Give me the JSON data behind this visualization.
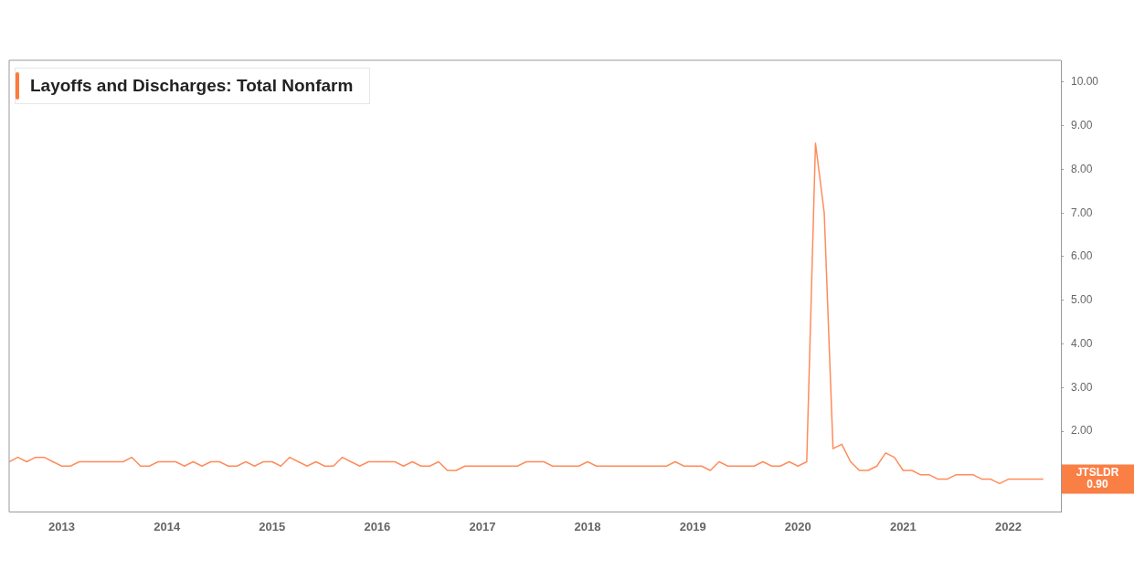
{
  "chart_data": {
    "type": "line",
    "title": "Layoffs and Discharges: Total Nonfarm",
    "x": [
      "2012-07",
      "2012-08",
      "2012-09",
      "2012-10",
      "2012-11",
      "2012-12",
      "2013-01",
      "2013-02",
      "2013-03",
      "2013-04",
      "2013-05",
      "2013-06",
      "2013-07",
      "2013-08",
      "2013-09",
      "2013-10",
      "2013-11",
      "2013-12",
      "2014-01",
      "2014-02",
      "2014-03",
      "2014-04",
      "2014-05",
      "2014-06",
      "2014-07",
      "2014-08",
      "2014-09",
      "2014-10",
      "2014-11",
      "2014-12",
      "2015-01",
      "2015-02",
      "2015-03",
      "2015-04",
      "2015-05",
      "2015-06",
      "2015-07",
      "2015-08",
      "2015-09",
      "2015-10",
      "2015-11",
      "2015-12",
      "2016-01",
      "2016-02",
      "2016-03",
      "2016-04",
      "2016-05",
      "2016-06",
      "2016-07",
      "2016-08",
      "2016-09",
      "2016-10",
      "2016-11",
      "2016-12",
      "2017-01",
      "2017-02",
      "2017-03",
      "2017-04",
      "2017-05",
      "2017-06",
      "2017-07",
      "2017-08",
      "2017-09",
      "2017-10",
      "2017-11",
      "2017-12",
      "2018-01",
      "2018-02",
      "2018-03",
      "2018-04",
      "2018-05",
      "2018-06",
      "2018-07",
      "2018-08",
      "2018-09",
      "2018-10",
      "2018-11",
      "2018-12",
      "2019-01",
      "2019-02",
      "2019-03",
      "2019-04",
      "2019-05",
      "2019-06",
      "2019-07",
      "2019-08",
      "2019-09",
      "2019-10",
      "2019-11",
      "2019-12",
      "2020-01",
      "2020-02",
      "2020-03",
      "2020-04",
      "2020-05",
      "2020-06",
      "2020-07",
      "2020-08",
      "2020-09",
      "2020-10",
      "2020-11",
      "2020-12",
      "2021-01",
      "2021-02",
      "2021-03",
      "2021-04",
      "2021-05",
      "2021-06",
      "2021-07",
      "2021-08",
      "2021-09",
      "2021-10",
      "2021-11",
      "2021-12",
      "2022-01",
      "2022-02",
      "2022-03",
      "2022-04",
      "2022-05"
    ],
    "series": [
      {
        "color": "#ff8c5a",
        "values": [
          1.3,
          1.4,
          1.3,
          1.4,
          1.4,
          1.3,
          1.2,
          1.2,
          1.3,
          1.3,
          1.3,
          1.3,
          1.3,
          1.3,
          1.4,
          1.2,
          1.2,
          1.3,
          1.3,
          1.3,
          1.2,
          1.3,
          1.2,
          1.3,
          1.3,
          1.2,
          1.2,
          1.3,
          1.2,
          1.3,
          1.3,
          1.2,
          1.4,
          1.3,
          1.2,
          1.3,
          1.2,
          1.2,
          1.4,
          1.3,
          1.2,
          1.3,
          1.3,
          1.3,
          1.3,
          1.2,
          1.3,
          1.2,
          1.2,
          1.3,
          1.1,
          1.1,
          1.2,
          1.2,
          1.2,
          1.2,
          1.2,
          1.2,
          1.2,
          1.3,
          1.3,
          1.3,
          1.2,
          1.2,
          1.2,
          1.2,
          1.3,
          1.2,
          1.2,
          1.2,
          1.2,
          1.2,
          1.2,
          1.2,
          1.2,
          1.2,
          1.3,
          1.2,
          1.2,
          1.2,
          1.1,
          1.3,
          1.2,
          1.2,
          1.2,
          1.2,
          1.3,
          1.2,
          1.2,
          1.3,
          1.2,
          1.3,
          8.6,
          7.0,
          1.6,
          1.7,
          1.3,
          1.1,
          1.1,
          1.2,
          1.5,
          1.4,
          1.1,
          1.1,
          1.0,
          1.0,
          0.9,
          0.9,
          1.0,
          1.0,
          1.0,
          0.9,
          0.9,
          0.8,
          0.9,
          0.9,
          0.9,
          0.9,
          0.9
        ]
      }
    ],
    "xlim": [
      "2012-07",
      "2022-07"
    ],
    "xticks": [
      "2013",
      "2014",
      "2015",
      "2016",
      "2017",
      "2018",
      "2019",
      "2020",
      "2021",
      "2022"
    ],
    "ylim": [
      0.15,
      10.5
    ],
    "yticks": [
      {
        "value": 2,
        "label": "2.00"
      },
      {
        "value": 3,
        "label": "3.00"
      },
      {
        "value": 4,
        "label": "4.00"
      },
      {
        "value": 5,
        "label": "5.00"
      },
      {
        "value": 6,
        "label": "6.00"
      },
      {
        "value": 7,
        "label": "7.00"
      },
      {
        "value": 8,
        "label": "8.00"
      },
      {
        "value": 9,
        "label": "9.00"
      },
      {
        "value": 10,
        "label": "10.00"
      }
    ],
    "annotations": [
      "JTSLDR 0.90"
    ],
    "grid": false,
    "legend": false,
    "marker": "none",
    "line_style": "solid"
  }
}
